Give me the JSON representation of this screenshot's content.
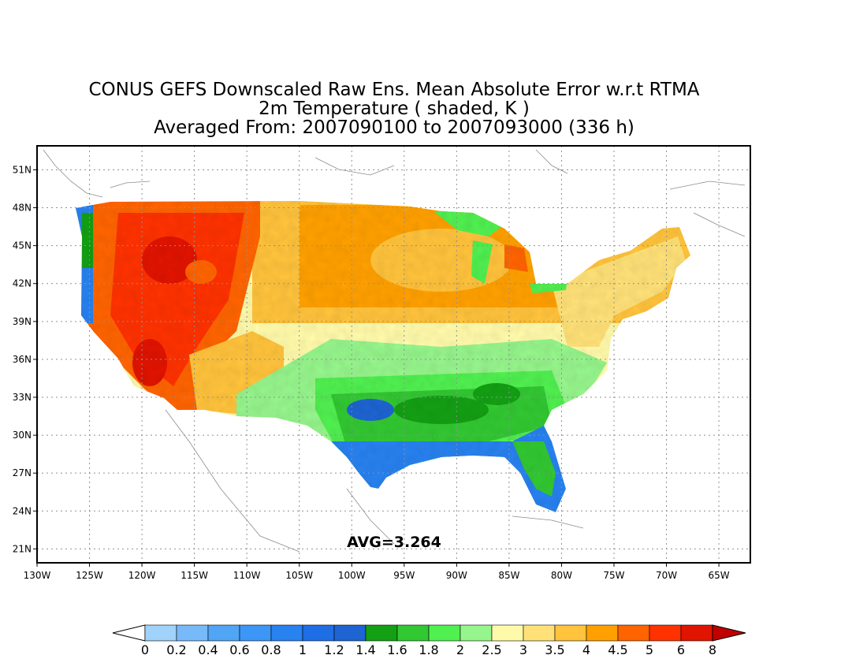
{
  "title": {
    "line1": "CONUS GEFS Downscaled Raw Ens. Mean Absolute Error w.r.t RTMA",
    "line2": "2m Temperature ( shaded, K )",
    "line3": "Averaged From: 2007090100 to 2007093000 (336 h)"
  },
  "annotation": {
    "avg_text": "AVG=3.264"
  },
  "axes": {
    "lon_labels": [
      "130W",
      "125W",
      "120W",
      "115W",
      "110W",
      "105W",
      "100W",
      "95W",
      "90W",
      "85W",
      "80W",
      "75W",
      "70W",
      "65W"
    ],
    "lat_labels": [
      "51N",
      "48N",
      "45N",
      "42N",
      "39N",
      "36N",
      "33N",
      "30N",
      "27N",
      "24N",
      "21N"
    ],
    "grid": true,
    "lon_range": [
      -130,
      -62
    ],
    "lat_range": [
      19.9,
      52.9
    ]
  },
  "colorbar": {
    "labels": [
      "0",
      "0.2",
      "0.4",
      "0.6",
      "0.8",
      "1",
      "1.2",
      "1.4",
      "1.6",
      "1.8",
      "2",
      "2.5",
      "3",
      "3.5",
      "4",
      "4.5",
      "5",
      "6",
      "8"
    ],
    "colors": [
      "#a0d2fa",
      "#78b9fa",
      "#50a5f5",
      "#3c96f5",
      "#2882f0",
      "#1e6ee6",
      "#1e64d2",
      "#14a014",
      "#32c832",
      "#50f050",
      "#96f58c",
      "#fffaaa",
      "#ffe178",
      "#ffc33c",
      "#ffa000",
      "#ff6400",
      "#ff3200",
      "#e11400",
      "#c00000"
    ],
    "under_color": "#ffffff",
    "over_color": "#a50000"
  }
}
